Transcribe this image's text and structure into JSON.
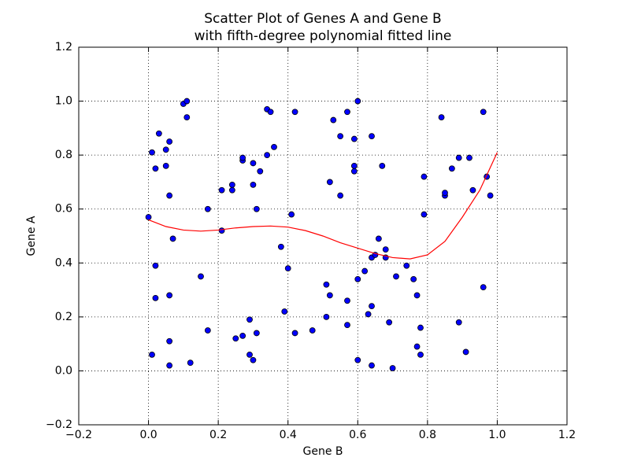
{
  "chart_data": {
    "type": "scatter",
    "title": "Scatter Plot of Genes A and Gene B",
    "subtitle": "with fifth-degree polynomial fitted line",
    "x_label": "Gene B",
    "y_label": "Gene A",
    "xlim": [
      -0.2,
      1.2
    ],
    "ylim": [
      -0.2,
      1.2
    ],
    "xticks": [
      {
        "value": -0.2,
        "label": "−0.2"
      },
      {
        "value": 0,
        "label": "0.0"
      },
      0.2,
      0.4,
      0.6,
      0.8,
      {
        "value": 1,
        "label": "1.0"
      },
      1.2
    ],
    "yticks": [
      {
        "value": -0.2,
        "label": "−0.2"
      },
      {
        "value": 0,
        "label": "0.0"
      },
      0.2,
      0.4,
      0.6,
      0.8,
      {
        "value": 1,
        "label": "1.0"
      },
      1.2
    ],
    "grid": true,
    "series": [
      {
        "type": "scatter",
        "color": "#0000ff",
        "x": [
          0.0,
          0.01,
          0.01,
          0.02,
          0.02,
          0.02,
          0.03,
          0.05,
          0.05,
          0.06,
          0.06,
          0.06,
          0.06,
          0.06,
          0.07,
          0.1,
          0.11,
          0.11,
          0.12,
          0.15,
          0.17,
          0.17,
          0.21,
          0.21,
          0.24,
          0.24,
          0.25,
          0.27,
          0.27,
          0.27,
          0.29,
          0.29,
          0.3,
          0.3,
          0.3,
          0.31,
          0.31,
          0.32,
          0.34,
          0.34,
          0.35,
          0.36,
          0.38,
          0.39,
          0.4,
          0.41,
          0.42,
          0.42,
          0.47,
          0.51,
          0.51,
          0.52,
          0.52,
          0.53,
          0.55,
          0.55,
          0.57,
          0.57,
          0.57,
          0.59,
          0.59,
          0.59,
          0.6,
          0.6,
          0.6,
          0.62,
          0.63,
          0.64,
          0.64,
          0.64,
          0.64,
          0.65,
          0.66,
          0.67,
          0.68,
          0.68,
          0.69,
          0.7,
          0.71,
          0.74,
          0.76,
          0.77,
          0.77,
          0.78,
          0.78,
          0.79,
          0.79,
          0.84,
          0.85,
          0.85,
          0.87,
          0.89,
          0.89,
          0.92,
          0.91,
          0.93,
          0.96,
          0.96,
          0.97,
          0.98
        ],
        "values": [
          0.57,
          0.81,
          0.06,
          0.39,
          0.75,
          0.27,
          0.88,
          0.82,
          0.76,
          0.65,
          0.11,
          0.28,
          0.02,
          0.85,
          0.49,
          0.99,
          1.0,
          0.94,
          0.03,
          0.35,
          0.15,
          0.6,
          0.67,
          0.52,
          0.69,
          0.67,
          0.12,
          0.78,
          0.79,
          0.13,
          0.06,
          0.19,
          0.69,
          0.04,
          0.77,
          0.6,
          0.14,
          0.74,
          0.8,
          0.97,
          0.96,
          0.83,
          0.46,
          0.22,
          0.38,
          0.58,
          0.96,
          0.14,
          0.15,
          0.32,
          0.2,
          0.28,
          0.7,
          0.93,
          0.87,
          0.65,
          0.96,
          0.26,
          0.17,
          0.86,
          0.76,
          0.74,
          1.0,
          0.04,
          0.34,
          0.37,
          0.21,
          0.24,
          0.02,
          0.42,
          0.87,
          0.43,
          0.49,
          0.76,
          0.42,
          0.45,
          0.18,
          0.01,
          0.35,
          0.39,
          0.34,
          0.28,
          0.09,
          0.16,
          0.06,
          0.72,
          0.58,
          0.94,
          0.65,
          0.66,
          0.75,
          0.18,
          0.79,
          0.79,
          0.07,
          0.67,
          0.96,
          0.31,
          0.72,
          0.65
        ]
      },
      {
        "type": "line",
        "color": "#ff0000",
        "x": [
          0,
          0.05,
          0.1,
          0.15,
          0.2,
          0.25,
          0.3,
          0.35,
          0.4,
          0.45,
          0.5,
          0.55,
          0.6,
          0.65,
          0.7,
          0.75,
          0.8,
          0.85,
          0.9,
          0.95,
          1.0
        ],
        "values": [
          0.56,
          0.535,
          0.522,
          0.518,
          0.522,
          0.53,
          0.535,
          0.537,
          0.533,
          0.52,
          0.5,
          0.475,
          0.455,
          0.435,
          0.42,
          0.415,
          0.43,
          0.48,
          0.57,
          0.67,
          0.81
        ]
      }
    ]
  }
}
